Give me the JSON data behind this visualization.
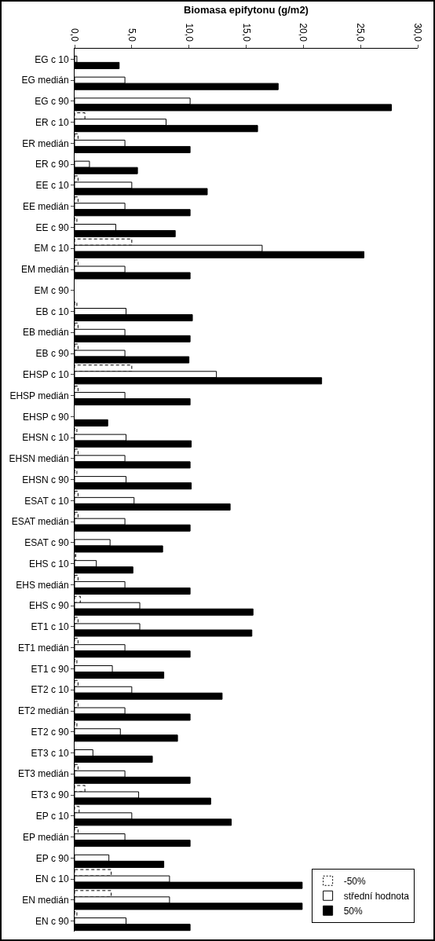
{
  "chart_data": {
    "type": "bar",
    "orientation": "horizontal",
    "xlabel": "Biomasa epifytonu (g/m2)",
    "categories": [
      "EG c 10",
      "EG medián",
      "EG c 90",
      "ER c 10",
      "ER medián",
      "ER c 90",
      "EE c 10",
      "EE medián",
      "EE c 90",
      "EM c 10",
      "EM medián",
      "EM c 90",
      "EB c 10",
      "EB medián",
      "EB c 90",
      "EHSP c 10",
      "EHSP medián",
      "EHSP c 90",
      "EHSN c 10",
      "EHSN medián",
      "EHSN c 90",
      "ESAT c 10",
      "ESAT medián",
      "ESAT c 90",
      "EHS c 10",
      "EHS medián",
      "EHS c 90",
      "ET1 c 10",
      "ET1 medián",
      "ET1 c 90",
      "ET2 c 10",
      "ET2 medián",
      "ET2 c 90",
      "ET3 c 10",
      "ET3 medián",
      "ET3 c 90",
      "EP c 10",
      "EP medián",
      "EP c 90",
      "EN c 10",
      "EN medián",
      "EN c 90"
    ],
    "series": [
      {
        "name": "-50%",
        "color": "#ffffff",
        "line_style": "dashed",
        "values": [
          null,
          null,
          null,
          0.9,
          0.3,
          null,
          0.3,
          0.3,
          0.2,
          5.0,
          0.3,
          null,
          0.2,
          0.3,
          0.3,
          5.0,
          0.3,
          null,
          0.2,
          0.3,
          0.2,
          0.3,
          0.3,
          null,
          0.1,
          0.3,
          0.5,
          0.3,
          0.3,
          0.2,
          0.3,
          0.3,
          0.2,
          null,
          0.3,
          0.9,
          0.4,
          0.3,
          null,
          3.2,
          3.2,
          0.2
        ]
      },
      {
        "name": "střední hodnota",
        "color": "#ffffff",
        "values": [
          0.2,
          4.4,
          10.1,
          8.0,
          4.4,
          1.3,
          5.0,
          4.4,
          3.6,
          16.4,
          4.4,
          null,
          4.5,
          4.4,
          4.4,
          12.4,
          4.4,
          null,
          4.5,
          4.4,
          4.5,
          5.2,
          4.4,
          3.1,
          1.9,
          4.4,
          5.7,
          5.7,
          4.4,
          3.3,
          5.0,
          4.4,
          4.0,
          1.6,
          4.4,
          5.6,
          5.0,
          4.4,
          3.0,
          8.3,
          8.3,
          4.5
        ]
      },
      {
        "name": "50%",
        "color": "#000000",
        "values": [
          3.9,
          17.8,
          27.7,
          16.0,
          10.1,
          5.5,
          11.6,
          10.1,
          8.8,
          25.3,
          10.1,
          null,
          10.3,
          10.1,
          10.0,
          21.6,
          10.1,
          2.9,
          10.2,
          10.1,
          10.2,
          13.6,
          10.1,
          7.7,
          5.1,
          10.1,
          15.6,
          15.5,
          10.1,
          7.8,
          12.9,
          10.1,
          9.0,
          6.8,
          10.1,
          11.9,
          13.7,
          10.1,
          7.8,
          19.9,
          19.9,
          10.1
        ]
      }
    ],
    "xlim": [
      0,
      30
    ],
    "xticks": [
      {
        "value": 0,
        "label": "0,0"
      },
      {
        "value": 5,
        "label": "5,0"
      },
      {
        "value": 10,
        "label": "10,0"
      },
      {
        "value": 15,
        "label": "15,0"
      },
      {
        "value": 20,
        "label": "20,0"
      },
      {
        "value": 25,
        "label": "25,0"
      },
      {
        "value": 30,
        "label": "30,0"
      }
    ],
    "grid": false,
    "legend": "bottom right"
  }
}
